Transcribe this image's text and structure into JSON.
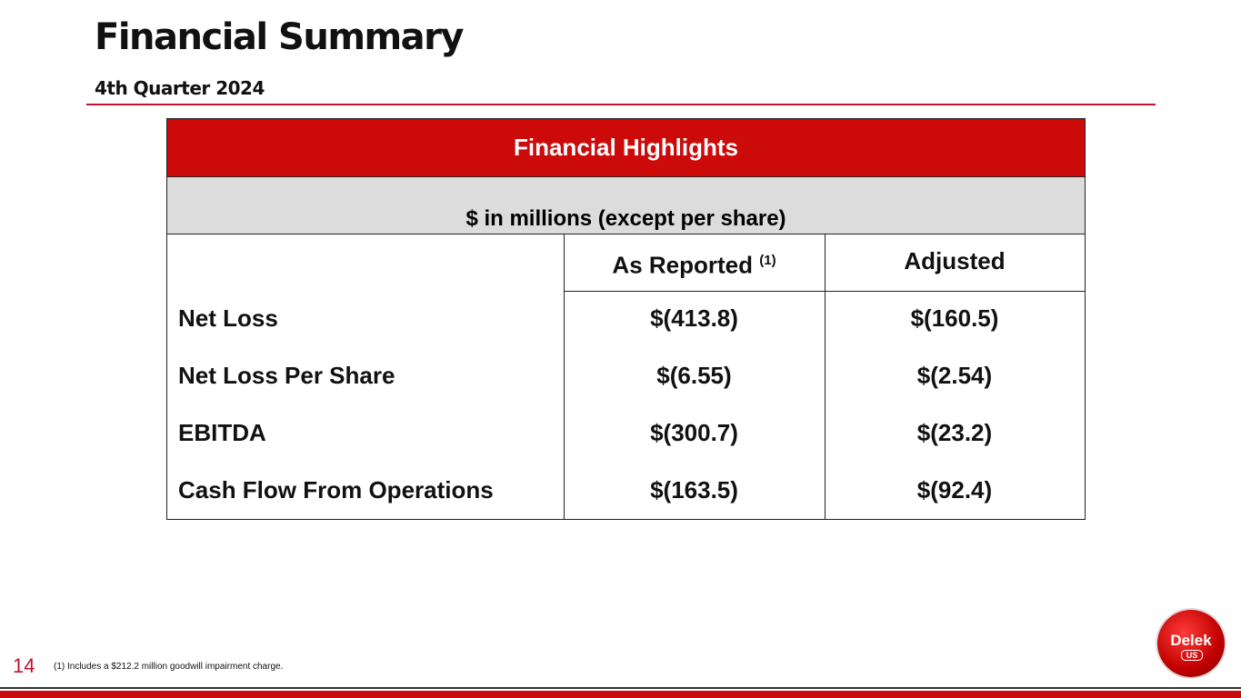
{
  "header": {
    "title": "Financial Summary",
    "subtitle": "4th Quarter 2024"
  },
  "table": {
    "title": "Financial Highlights",
    "subtitle": "$ in millions (except per share)",
    "columns": [
      {
        "label": "As Reported",
        "note": "(1)"
      },
      {
        "label": "Adjusted"
      }
    ],
    "rows": [
      [
        "Net Loss",
        "$(413.8)",
        "$(160.5)"
      ],
      [
        "Net Loss Per Share",
        "$(6.55)",
        "$(2.54)"
      ],
      [
        "EBITDA",
        "$(300.7)",
        "$(23.2)"
      ],
      [
        "Cash Flow From Operations",
        "$(163.5)",
        "$(92.4)"
      ]
    ]
  },
  "footer": {
    "page_number": "14",
    "footnote": "(1) Includes a $212.2 million goodwill impairment charge.",
    "logo": {
      "name": "Delek",
      "suffix": "US"
    }
  }
}
